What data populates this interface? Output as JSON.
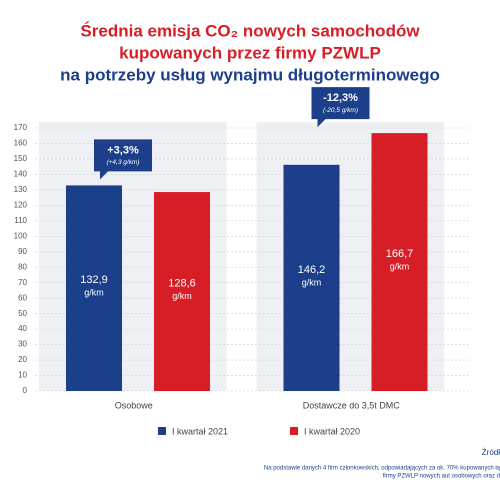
{
  "chart_data": {
    "type": "bar",
    "title": [
      "Średnia emisja CO₂ nowych samochodów",
      "kupowanych przez firmy PZWLP",
      "na potrzeby usług wynajmu długoterminowego"
    ],
    "categories": [
      "Osobowe",
      "Dostawcze do 3,5t DMC"
    ],
    "series": [
      {
        "name": "I kwartał 2021",
        "color": "#1b3f8b",
        "values": [
          132.9,
          146.2
        ],
        "value_labels": [
          "132,9",
          "146,2"
        ]
      },
      {
        "name": "I kwartał 2020",
        "color": "#d71d26",
        "values": [
          128.6,
          166.7
        ],
        "value_labels": [
          "128,6",
          "166,7"
        ]
      }
    ],
    "unit": "g/km",
    "annotations": [
      {
        "text": "+3,3%",
        "detail": "(+4,3 g/km)"
      },
      {
        "text": "-12,3%",
        "detail": "(-20,5 g/km)"
      }
    ],
    "ylim": [
      0,
      170
    ],
    "yticks": [
      0,
      10,
      20,
      30,
      40,
      50,
      60,
      70,
      80,
      90,
      100,
      110,
      120,
      130,
      140,
      150,
      160,
      170
    ],
    "grid": true,
    "source": [
      "Źródł",
      "Na podstawie danych 4 firm członkowskich, odpowiadających za ok. 70% kupowanych łą",
      "firmy PZWLP nowych aut osobowych oraz d"
    ]
  }
}
